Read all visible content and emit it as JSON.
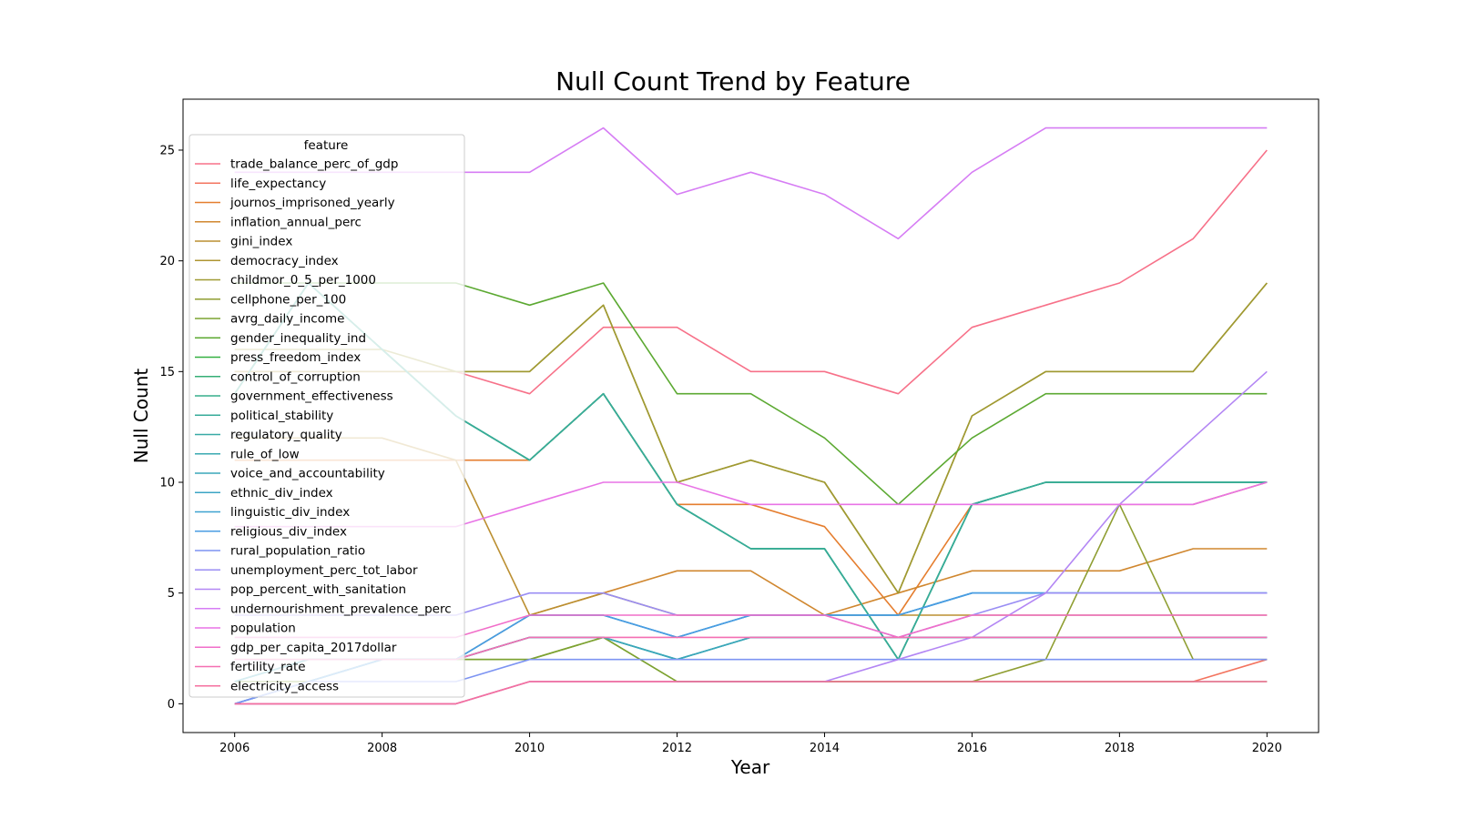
{
  "chart_data": {
    "type": "line",
    "title": "Null Count Trend by Feature",
    "xlabel": "Year",
    "ylabel": "Null Count",
    "xlim": [
      2005.3,
      2020.7
    ],
    "ylim": [
      -1.3,
      27.3
    ],
    "x_ticks": [
      2006,
      2008,
      2010,
      2012,
      2014,
      2016,
      2018,
      2020
    ],
    "y_ticks": [
      0,
      5,
      10,
      15,
      20,
      25
    ],
    "grid": false,
    "legend_title": "feature",
    "legend_position": "upper-left",
    "x": [
      2006,
      2007,
      2008,
      2009,
      2010,
      2011,
      2012,
      2013,
      2014,
      2015,
      2016,
      2017,
      2018,
      2019,
      2020
    ],
    "series": [
      {
        "name": "trade_balance_perc_of_gdp",
        "color": "#f77189",
        "values": [
          15,
          15,
          15,
          15,
          14,
          17,
          17,
          15,
          15,
          14,
          17,
          18,
          19,
          21,
          25
        ]
      },
      {
        "name": "life_expectancy",
        "color": "#f3745f",
        "values": [
          0,
          0,
          0,
          0,
          1,
          1,
          1,
          1,
          1,
          1,
          1,
          1,
          1,
          1,
          2
        ]
      },
      {
        "name": "journos_imprisoned_yearly",
        "color": "#e57e2f",
        "values": [
          11,
          11,
          11,
          11,
          11,
          14,
          9,
          9,
          8,
          4,
          9,
          9,
          9,
          9,
          10
        ]
      },
      {
        "name": "inflation_annual_perc",
        "color": "#d0872f",
        "values": [
          2,
          2,
          2,
          2,
          4,
          5,
          6,
          6,
          4,
          5,
          6,
          6,
          6,
          7,
          7
        ]
      },
      {
        "name": "gini_index",
        "color": "#bb8f31",
        "values": [
          12,
          12,
          12,
          11,
          4,
          5,
          4,
          4,
          4,
          4,
          4,
          4,
          4,
          4,
          4
        ]
      },
      {
        "name": "democracy_index",
        "color": "#ae9531",
        "values": [
          15,
          15,
          15,
          15,
          15,
          18,
          10,
          11,
          10,
          5,
          13,
          15,
          15,
          15,
          19
        ]
      },
      {
        "name": "childmor_0_5_per_1000",
        "color": "#9f9a32",
        "values": [
          16,
          16,
          16,
          15,
          15,
          18,
          10,
          11,
          10,
          5,
          13,
          15,
          15,
          15,
          19
        ]
      },
      {
        "name": "cellphone_per_100",
        "color": "#8f9e32",
        "values": [
          1,
          1,
          2,
          2,
          2,
          3,
          1,
          1,
          1,
          1,
          1,
          2,
          9,
          2,
          2
        ]
      },
      {
        "name": "avrg_daily_income",
        "color": "#7ca332",
        "values": [
          1,
          1,
          2,
          2,
          2,
          3,
          1,
          1,
          1,
          1,
          1,
          1,
          1,
          1,
          1
        ]
      },
      {
        "name": "gender_inequality_ind",
        "color": "#5ca932",
        "values": [
          19,
          19,
          19,
          19,
          18,
          19,
          14,
          14,
          12,
          9,
          12,
          14,
          14,
          14,
          14
        ]
      },
      {
        "name": "press_freedom_index",
        "color": "#33b041",
        "values": [
          14,
          19,
          16,
          13,
          11,
          14,
          9,
          7,
          7,
          2,
          9,
          10,
          10,
          10,
          10
        ]
      },
      {
        "name": "control_of_corruption",
        "color": "#35ae75",
        "values": [
          14,
          19,
          16,
          13,
          11,
          14,
          9,
          7,
          7,
          2,
          9,
          10,
          10,
          10,
          10
        ]
      },
      {
        "name": "government_effectiveness",
        "color": "#36ad8b",
        "values": [
          14,
          19,
          16,
          13,
          11,
          14,
          9,
          7,
          7,
          2,
          9,
          10,
          10,
          10,
          10
        ]
      },
      {
        "name": "political_stability",
        "color": "#37ab9a",
        "values": [
          14,
          19,
          16,
          13,
          11,
          14,
          9,
          7,
          7,
          2,
          9,
          10,
          10,
          10,
          10
        ]
      },
      {
        "name": "regulatory_quality",
        "color": "#38aaa6",
        "values": [
          1,
          2,
          2,
          2,
          3,
          3,
          2,
          3,
          3,
          3,
          3,
          3,
          3,
          3,
          3
        ]
      },
      {
        "name": "rule_of_low",
        "color": "#39a9b1",
        "values": [
          1,
          2,
          2,
          2,
          3,
          3,
          2,
          3,
          3,
          3,
          3,
          3,
          3,
          3,
          3
        ]
      },
      {
        "name": "voice_and_accountability",
        "color": "#3aa7ba",
        "values": [
          1,
          2,
          2,
          2,
          3,
          3,
          2,
          3,
          3,
          3,
          3,
          3,
          3,
          3,
          3
        ]
      },
      {
        "name": "ethnic_div_index",
        "color": "#3ba5c4",
        "values": [
          0,
          1,
          2,
          2,
          4,
          4,
          3,
          4,
          4,
          4,
          5,
          5,
          5,
          5,
          5
        ]
      },
      {
        "name": "linguistic_div_index",
        "color": "#3da2d0",
        "values": [
          0,
          1,
          2,
          2,
          4,
          4,
          3,
          4,
          4,
          4,
          5,
          5,
          5,
          5,
          5
        ]
      },
      {
        "name": "religious_div_index",
        "color": "#4a9ce3",
        "values": [
          0,
          1,
          2,
          2,
          4,
          4,
          3,
          4,
          4,
          4,
          5,
          5,
          5,
          5,
          5
        ]
      },
      {
        "name": "rural_population_ratio",
        "color": "#7d94f2",
        "values": [
          0,
          1,
          1,
          1,
          2,
          2,
          2,
          2,
          2,
          2,
          2,
          2,
          2,
          2,
          2
        ]
      },
      {
        "name": "unemployment_perc_tot_labor",
        "color": "#9a8ef4",
        "values": [
          4,
          4,
          4,
          4,
          5,
          5,
          4,
          4,
          4,
          3,
          4,
          5,
          5,
          5,
          5
        ]
      },
      {
        "name": "pop_percent_with_sanitation",
        "color": "#b386f4",
        "values": [
          0,
          0,
          0,
          0,
          1,
          1,
          1,
          1,
          1,
          2,
          3,
          5,
          9,
          12,
          15
        ]
      },
      {
        "name": "undernourishment_prevalence_perc",
        "color": "#d67df4",
        "values": [
          24,
          24,
          24,
          24,
          24,
          26,
          23,
          24,
          23,
          21,
          24,
          26,
          26,
          26,
          26
        ]
      },
      {
        "name": "population",
        "color": "#e874e6",
        "values": [
          8,
          8,
          8,
          8,
          9,
          10,
          10,
          9,
          9,
          9,
          9,
          9,
          9,
          9,
          10
        ]
      },
      {
        "name": "gdp_per_capita_2017dollar",
        "color": "#f16ec9",
        "values": [
          3,
          3,
          3,
          3,
          4,
          4,
          4,
          4,
          4,
          3,
          4,
          4,
          4,
          4,
          4
        ]
      },
      {
        "name": "fertility_rate",
        "color": "#f46fb2",
        "values": [
          2,
          2,
          2,
          2,
          3,
          3,
          3,
          3,
          3,
          3,
          3,
          3,
          3,
          3,
          3
        ]
      },
      {
        "name": "electricity_access",
        "color": "#f5709f",
        "values": [
          0,
          0,
          0,
          0,
          1,
          1,
          1,
          1,
          1,
          1,
          1,
          1,
          1,
          1,
          1
        ]
      }
    ]
  }
}
